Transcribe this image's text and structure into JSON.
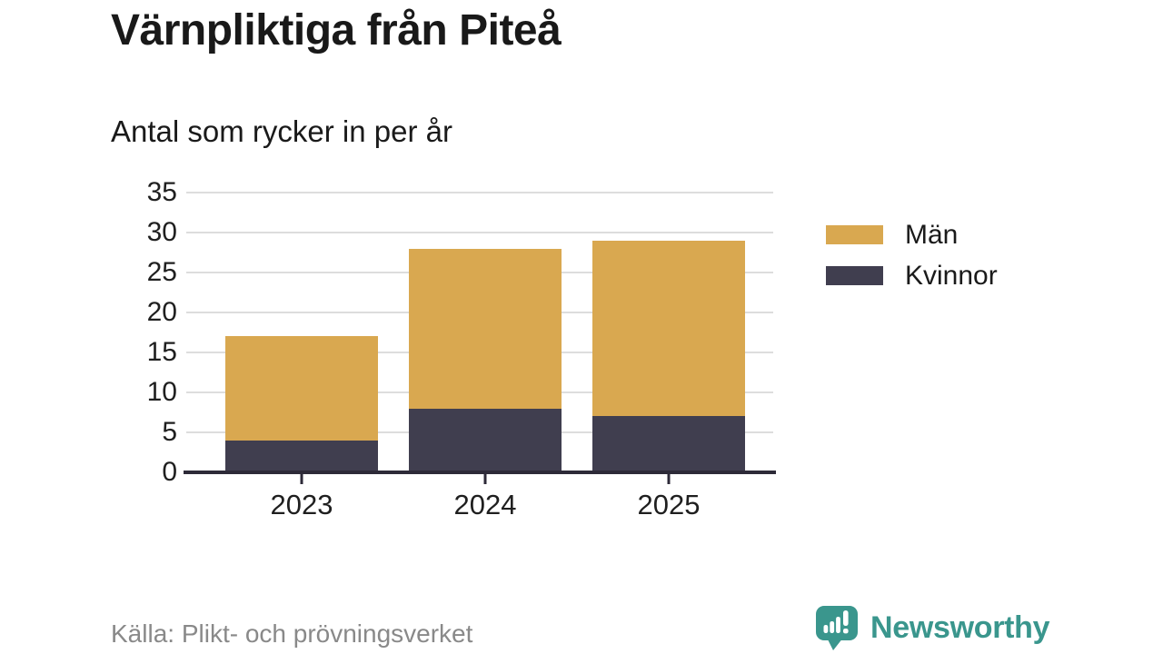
{
  "header": {
    "title": "Värnpliktiga från Piteå",
    "subtitle": "Antal som rycker in per år"
  },
  "chart_data": {
    "type": "bar",
    "stacked": true,
    "categories": [
      "2023",
      "2024",
      "2025"
    ],
    "series": [
      {
        "name": "Män",
        "slug": "men",
        "color": "#d9a850",
        "values": [
          13,
          20,
          22
        ]
      },
      {
        "name": "Kvinnor",
        "slug": "women",
        "color": "#403e4f",
        "values": [
          4,
          8,
          7
        ]
      }
    ],
    "totals": [
      17,
      28,
      29
    ],
    "title": "Antal som rycker in per år",
    "xlabel": "",
    "ylabel": "",
    "ylim": [
      0,
      35
    ],
    "yticks": [
      0,
      5,
      10,
      15,
      20,
      25,
      30,
      35
    ],
    "grid": "horizontal",
    "legend_position": "right"
  },
  "legend": {
    "items": [
      {
        "label": "Män",
        "color": "#d9a850"
      },
      {
        "label": "Kvinnor",
        "color": "#403e4f"
      }
    ]
  },
  "footer": {
    "source": "Källa: Plikt- och prövningsverket",
    "brand": "Newsworthy",
    "brand_color": "#3a968d"
  },
  "colors": {
    "men": "#d9a850",
    "women": "#403e4f",
    "axis": "#2d2a38",
    "gridline": "#dddddd",
    "text": "#1a1a1a",
    "muted": "#898989",
    "teal": "#3a968d"
  }
}
